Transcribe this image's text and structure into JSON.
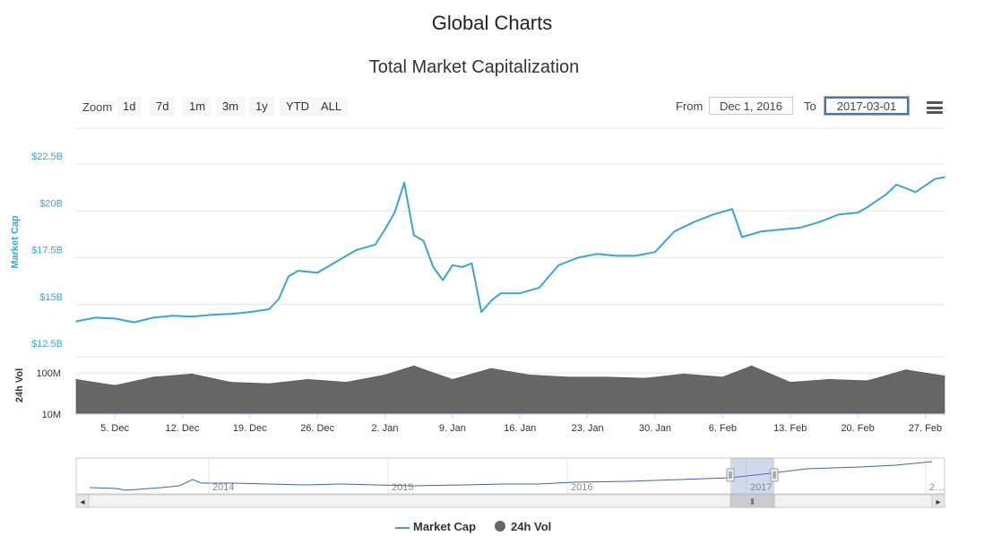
{
  "page_title": "Global Charts",
  "toolbar": {
    "zoom_label": "Zoom",
    "zoom_buttons": [
      "1d",
      "7d",
      "1m",
      "3m",
      "1y",
      "YTD",
      "ALL"
    ],
    "from_label": "From",
    "from_value": "Dec 1, 2016",
    "to_label": "To",
    "to_value": "2017-03-01"
  },
  "navigator": {
    "year_labels": [
      "2014",
      "2015",
      "2016",
      "2017",
      "2…"
    ],
    "scroll_left": "◂",
    "scroll_right": "▸",
    "scroll_grip": "⦀"
  },
  "colors": {
    "market_cap": "#3aa4d8",
    "volume": "#666666",
    "navigator_line": "#3b67a8"
  },
  "chart_data": {
    "type": "line",
    "title": "Total Market Capitalization",
    "x_range": [
      "2016-12-01",
      "2017-03-01"
    ],
    "x_tick_labels": [
      "5. Dec",
      "12. Dec",
      "19. Dec",
      "26. Dec",
      "2. Jan",
      "9. Jan",
      "16. Jan",
      "23. Jan",
      "30. Jan",
      "6. Feb",
      "13. Feb",
      "20. Feb",
      "27. Feb"
    ],
    "y_axis": {
      "label": "Market Cap",
      "tick_labels": [
        "$12.5B",
        "$15B",
        "$17.5B",
        "$20B",
        "$22.5B"
      ],
      "ylim": [
        12.5,
        22.5
      ],
      "unit": "$B"
    },
    "volume_axis": {
      "label": "24h Vol",
      "tick_labels": [
        "10M",
        "100M"
      ],
      "scale": "log"
    },
    "grid": true,
    "legend_position": "bottom-center",
    "series": [
      {
        "name": "Market Cap",
        "x": [
          "2016-12-01",
          "2016-12-03",
          "2016-12-05",
          "2016-12-07",
          "2016-12-09",
          "2016-12-11",
          "2016-12-13",
          "2016-12-15",
          "2016-12-17",
          "2016-12-19",
          "2016-12-21",
          "2016-12-22",
          "2016-12-23",
          "2016-12-24",
          "2016-12-26",
          "2016-12-28",
          "2016-12-30",
          "2017-01-01",
          "2017-01-02",
          "2017-01-03",
          "2017-01-04",
          "2017-01-05",
          "2017-01-06",
          "2017-01-07",
          "2017-01-08",
          "2017-01-09",
          "2017-01-10",
          "2017-01-11",
          "2017-01-12",
          "2017-01-13",
          "2017-01-14",
          "2017-01-16",
          "2017-01-18",
          "2017-01-20",
          "2017-01-22",
          "2017-01-24",
          "2017-01-26",
          "2017-01-28",
          "2017-01-30",
          "2017-02-01",
          "2017-02-03",
          "2017-02-05",
          "2017-02-07",
          "2017-02-08",
          "2017-02-10",
          "2017-02-12",
          "2017-02-14",
          "2017-02-16",
          "2017-02-18",
          "2017-02-20",
          "2017-02-21",
          "2017-02-23",
          "2017-02-24",
          "2017-02-26",
          "2017-02-28",
          "2017-03-01"
        ],
        "values": [
          14.1,
          14.3,
          14.25,
          14.05,
          14.3,
          14.4,
          14.35,
          14.45,
          14.5,
          14.6,
          14.75,
          15.3,
          16.5,
          16.8,
          16.7,
          17.3,
          17.9,
          18.2,
          19.0,
          19.9,
          21.5,
          18.7,
          18.4,
          17.0,
          16.3,
          17.1,
          17.0,
          17.2,
          14.6,
          15.2,
          15.6,
          15.6,
          15.9,
          17.1,
          17.5,
          17.7,
          17.6,
          17.6,
          17.8,
          18.9,
          19.4,
          19.8,
          20.1,
          18.6,
          18.9,
          19.0,
          19.1,
          19.4,
          19.8,
          19.9,
          20.2,
          20.9,
          21.4,
          21.0,
          21.7,
          21.8
        ]
      },
      {
        "name": "24h Vol",
        "x": [
          "2016-12-01",
          "2016-12-05",
          "2016-12-09",
          "2016-12-13",
          "2016-12-17",
          "2016-12-21",
          "2016-12-25",
          "2016-12-29",
          "2017-01-02",
          "2017-01-05",
          "2017-01-09",
          "2017-01-13",
          "2017-01-17",
          "2017-01-21",
          "2017-01-25",
          "2017-01-29",
          "2017-02-02",
          "2017-02-06",
          "2017-02-09",
          "2017-02-13",
          "2017-02-17",
          "2017-02-21",
          "2017-02-25",
          "2017-03-01"
        ],
        "values": [
          70,
          50,
          80,
          95,
          60,
          55,
          70,
          60,
          90,
          150,
          70,
          130,
          90,
          80,
          80,
          75,
          95,
          80,
          150,
          60,
          70,
          65,
          120,
          85
        ]
      }
    ]
  }
}
